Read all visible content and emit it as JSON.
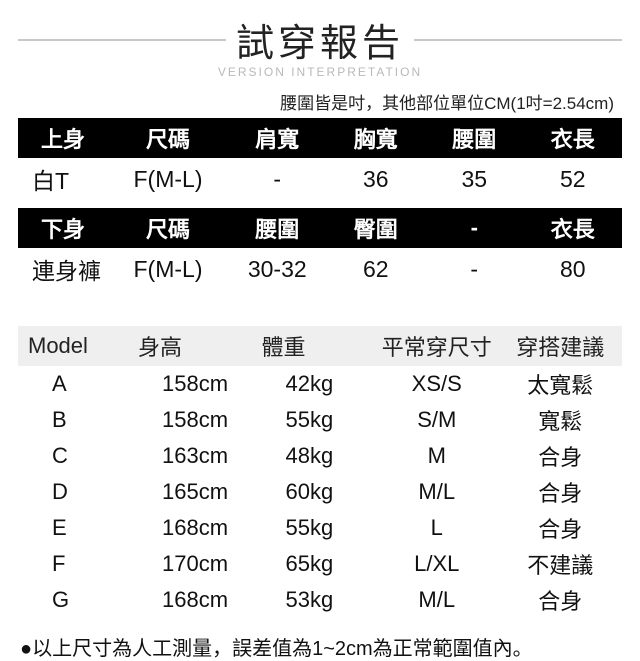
{
  "title": "試穿報告",
  "subtitle": "VERSION INTERPRETATION",
  "unit_note": "腰圍皆是吋，其他部位單位CM(1吋=2.54cm)",
  "top_table": {
    "headers": [
      "上身",
      "尺碼",
      "肩寬",
      "胸寬",
      "腰圍",
      "衣長"
    ],
    "row": {
      "name": "白T",
      "size": "F(M-L)",
      "shoulder": "-",
      "chest": "36",
      "waist": "35",
      "length": "52"
    }
  },
  "bottom_table": {
    "headers": [
      "下身",
      "尺碼",
      "腰圍",
      "臀圍",
      "-",
      "衣長"
    ],
    "row": {
      "name": "連身褲",
      "size": "F(M-L)",
      "waist": "30-32",
      "hip": "62",
      "blank": "-",
      "length": "80"
    }
  },
  "model_table": {
    "headers": [
      "Model",
      "身高",
      "體重",
      "平常穿尺寸",
      "穿搭建議"
    ],
    "rows": [
      {
        "id": "A",
        "height": "158cm",
        "weight": "42kg",
        "usual": "XS/S",
        "advice": "太寬鬆"
      },
      {
        "id": "B",
        "height": "158cm",
        "weight": "55kg",
        "usual": "S/M",
        "advice": "寬鬆"
      },
      {
        "id": "C",
        "height": "163cm",
        "weight": "48kg",
        "usual": "M",
        "advice": "合身"
      },
      {
        "id": "D",
        "height": "165cm",
        "weight": "60kg",
        "usual": "M/L",
        "advice": "合身"
      },
      {
        "id": "E",
        "height": "168cm",
        "weight": "55kg",
        "usual": "L",
        "advice": "合身"
      },
      {
        "id": "F",
        "height": "170cm",
        "weight": "65kg",
        "usual": "L/XL",
        "advice": "不建議"
      },
      {
        "id": "G",
        "height": "168cm",
        "weight": "53kg",
        "usual": "M/L",
        "advice": "合身"
      }
    ]
  },
  "footnote": "●以上尺寸為人工測量，誤差值為1~2cm為正常範圍值內。",
  "colors": {
    "header_bg": "#000000",
    "header_fg": "#ffffff",
    "model_header_bg": "#efefef",
    "rule": "#c9c9c9",
    "text": "#111111"
  }
}
